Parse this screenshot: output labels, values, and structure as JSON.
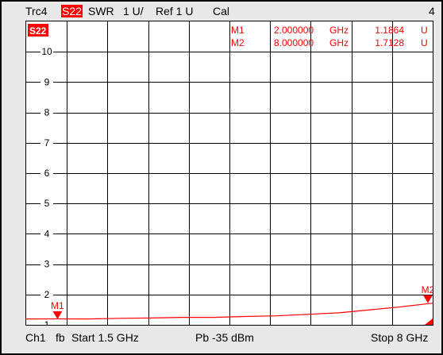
{
  "header": {
    "trace": "Trc4",
    "param": "S22",
    "format": "SWR",
    "scale": "1 U/",
    "ref": "Ref 1 U",
    "cal": "Cal",
    "window": "4"
  },
  "trace_tag": "S22",
  "markers": [
    {
      "name": "M1",
      "freq": "2.000000",
      "unit": "GHz",
      "value": "1.1864",
      "vunit": "U"
    },
    {
      "name": "M2",
      "freq": "8.000000",
      "unit": "GHz",
      "value": "1.7128",
      "vunit": "U"
    }
  ],
  "marker_flags": [
    "M1",
    "M2"
  ],
  "y_ticks": [
    "10",
    "9",
    "8",
    "7",
    "6",
    "5",
    "4",
    "3",
    "2",
    "1"
  ],
  "footer": {
    "channel": "Ch1",
    "fb": "fb",
    "start": "Start 1.5 GHz",
    "power": "Pb -35 dBm",
    "stop": "Stop 8 GHz"
  },
  "colors": {
    "trace": "#ff0000",
    "grid": "#000000",
    "marker": "#ff0000"
  },
  "chart_data": {
    "type": "line",
    "x_unit": "GHz",
    "y_unit": "U",
    "xlim": [
      1.5,
      8
    ],
    "ylim": [
      1,
      11
    ],
    "grid": true,
    "series": [
      {
        "name": "S22",
        "x": [
          1.5,
          2.0,
          2.5,
          3.0,
          3.5,
          4.0,
          4.5,
          5.0,
          5.5,
          6.0,
          6.5,
          7.0,
          7.5,
          8.0
        ],
        "y": [
          1.2,
          1.19,
          1.2,
          1.21,
          1.23,
          1.24,
          1.25,
          1.27,
          1.3,
          1.34,
          1.4,
          1.49,
          1.6,
          1.71
        ]
      }
    ],
    "markers": [
      {
        "name": "M1",
        "x": 2.0,
        "y": 1.1864
      },
      {
        "name": "M2",
        "x": 8.0,
        "y": 1.7128
      }
    ]
  }
}
